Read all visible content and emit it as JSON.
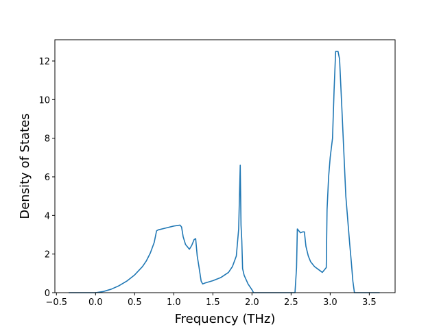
{
  "chart_data": {
    "type": "line",
    "title": "",
    "xlabel": "Frequency (THz)",
    "ylabel": "Density of States",
    "xlim": [
      -0.52,
      3.83
    ],
    "ylim": [
      0,
      13.1
    ],
    "grid": false,
    "legend": "none",
    "colors": {
      "line": "#1f77b4",
      "axes": "#000000",
      "background": "#ffffff"
    },
    "xticks": [
      -0.5,
      0.0,
      0.5,
      1.0,
      1.5,
      2.0,
      2.5,
      3.0,
      3.5
    ],
    "xtick_labels": [
      "−0.5",
      "0.0",
      "0.5",
      "1.0",
      "1.5",
      "2.0",
      "2.5",
      "3.0",
      "3.5"
    ],
    "yticks": [
      0,
      2,
      4,
      6,
      8,
      10,
      12
    ],
    "ytick_labels": [
      "0",
      "2",
      "4",
      "6",
      "8",
      "10",
      "12"
    ],
    "series": [
      {
        "x": [
          -0.34,
          -0.1,
          0.0,
          0.1,
          0.2,
          0.3,
          0.4,
          0.5,
          0.6,
          0.65,
          0.7,
          0.75,
          0.78,
          0.8,
          0.9,
          1.0,
          1.08,
          1.1,
          1.12,
          1.15,
          1.2,
          1.23,
          1.26,
          1.28,
          1.3,
          1.32,
          1.35,
          1.37,
          1.4,
          1.5,
          1.6,
          1.7,
          1.75,
          1.8,
          1.83,
          1.85,
          1.86,
          1.87,
          1.88,
          1.9,
          1.95,
          2.0,
          2.02,
          2.1,
          2.2,
          2.3,
          2.4,
          2.55,
          2.57,
          2.58,
          2.6,
          2.62,
          2.65,
          2.67,
          2.69,
          2.72,
          2.75,
          2.8,
          2.85,
          2.9,
          2.95,
          2.96,
          2.98,
          3.0,
          3.03,
          3.05,
          3.07,
          3.1,
          3.12,
          3.15,
          3.2,
          3.25,
          3.27,
          3.29,
          3.31,
          3.4,
          3.5,
          3.63
        ],
        "values": [
          0.0,
          0.0,
          0.0,
          0.06,
          0.18,
          0.36,
          0.6,
          0.92,
          1.35,
          1.65,
          2.05,
          2.6,
          3.2,
          3.25,
          3.35,
          3.45,
          3.5,
          3.4,
          2.9,
          2.5,
          2.25,
          2.45,
          2.75,
          2.8,
          1.9,
          1.4,
          0.6,
          0.45,
          0.5,
          0.62,
          0.78,
          1.05,
          1.35,
          1.9,
          3.3,
          6.6,
          3.5,
          2.7,
          1.25,
          0.9,
          0.45,
          0.15,
          0.0,
          0.0,
          0.0,
          0.0,
          0.0,
          0.0,
          1.3,
          3.3,
          3.2,
          3.1,
          3.15,
          3.15,
          2.4,
          1.9,
          1.6,
          1.35,
          1.2,
          1.05,
          1.3,
          4.3,
          6.0,
          7.0,
          8.0,
          10.5,
          12.5,
          12.5,
          12.1,
          9.5,
          5.0,
          2.5,
          1.6,
          0.6,
          0.0,
          0.0,
          0.0,
          0.0
        ]
      }
    ]
  }
}
